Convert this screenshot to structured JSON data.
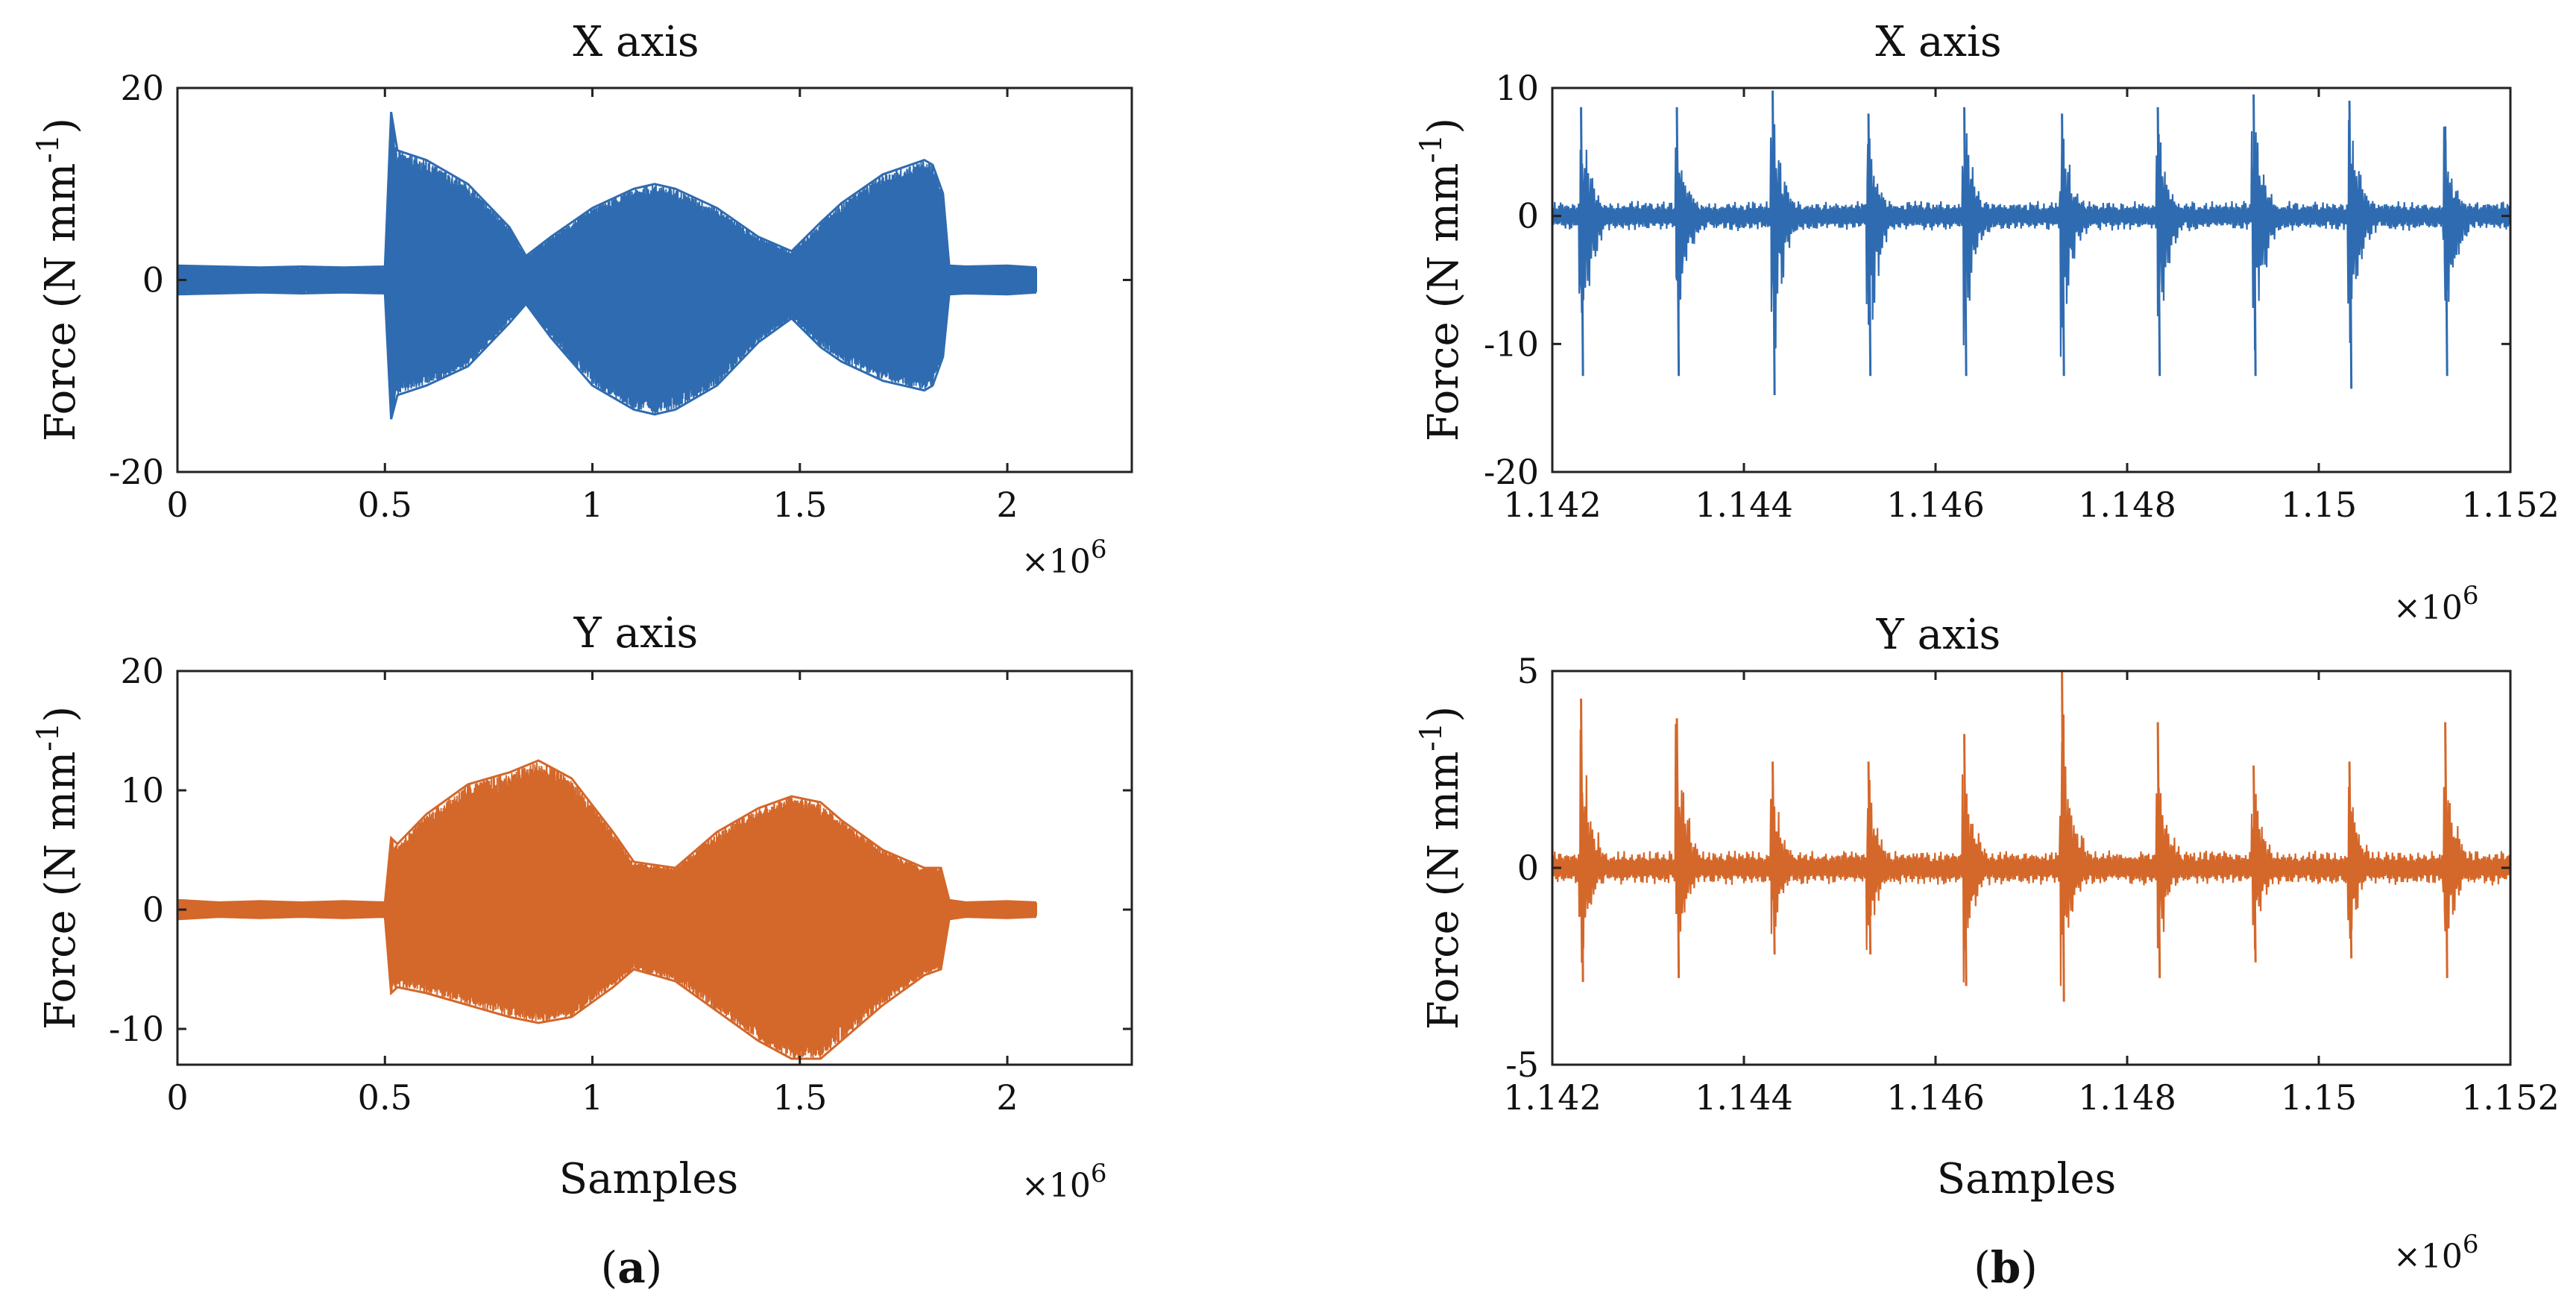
{
  "figure": {
    "panel_labels": [
      "a",
      "b"
    ],
    "colors": {
      "x_series": "#2f6bb0",
      "y_series": "#d4672a",
      "axes": "#222222",
      "text": "#111111"
    }
  },
  "chart_data": [
    {
      "id": "a-x",
      "type": "line",
      "title": "X axis",
      "xlabel": "",
      "ylabel_base": "Force (N mm",
      "ylabel_sup": "-1",
      "ylabel_close": ")",
      "x_multiplier": "×10",
      "x_multiplier_exp": "6",
      "xlim": [
        0,
        2.3
      ],
      "ylim": [
        -20,
        20
      ],
      "xticks": [
        0,
        0.5,
        1,
        1.5,
        2
      ],
      "xtick_labels": [
        "0",
        "0.5",
        "1",
        "1.5",
        "2"
      ],
      "yticks": [
        -20,
        0,
        20
      ],
      "ytick_labels": [
        "-20",
        "0",
        "20"
      ],
      "grid": false,
      "color": "#2f6bb0",
      "envelope": {
        "x": [
          0,
          0.1,
          0.2,
          0.3,
          0.4,
          0.5,
          0.515,
          0.53,
          0.6,
          0.7,
          0.8,
          0.84,
          0.9,
          1.0,
          1.1,
          1.15,
          1.2,
          1.3,
          1.4,
          1.48,
          1.55,
          1.6,
          1.7,
          1.8,
          1.82,
          1.845,
          1.86,
          1.9,
          2.0,
          2.07
        ],
        "upper": [
          1.5,
          1.4,
          1.3,
          1.4,
          1.3,
          1.4,
          17.5,
          13.5,
          12.5,
          10.0,
          5.5,
          2.5,
          4.5,
          7.5,
          9.5,
          10.0,
          9.5,
          7.5,
          4.5,
          3.0,
          6.0,
          8.0,
          11.0,
          12.5,
          12.0,
          9.0,
          1.5,
          1.4,
          1.5,
          1.3
        ],
        "lower": [
          -1.5,
          -1.4,
          -1.3,
          -1.4,
          -1.3,
          -1.4,
          -14.5,
          -12.0,
          -11.0,
          -9.0,
          -4.5,
          -2.5,
          -6.0,
          -11.0,
          -13.5,
          -14.0,
          -13.5,
          -11.0,
          -6.5,
          -4.0,
          -7.0,
          -8.5,
          -10.5,
          -11.5,
          -11.0,
          -8.0,
          -1.5,
          -1.4,
          -1.5,
          -1.3
        ]
      }
    },
    {
      "id": "a-y",
      "type": "line",
      "title": "Y axis",
      "xlabel": "Samples",
      "ylabel_base": "Force (N mm",
      "ylabel_sup": "-1",
      "ylabel_close": ")",
      "x_multiplier": "×10",
      "x_multiplier_exp": "6",
      "xlim": [
        0,
        2.3
      ],
      "ylim": [
        -13,
        20
      ],
      "xticks": [
        0,
        0.5,
        1,
        1.5,
        2
      ],
      "xtick_labels": [
        "0",
        "0.5",
        "1",
        "1.5",
        "2"
      ],
      "yticks": [
        -10,
        0,
        10,
        20
      ],
      "ytick_labels": [
        "-10",
        "0",
        "10",
        "20"
      ],
      "grid": false,
      "color": "#d4672a",
      "envelope": {
        "x": [
          0,
          0.1,
          0.2,
          0.3,
          0.4,
          0.5,
          0.515,
          0.53,
          0.6,
          0.7,
          0.8,
          0.87,
          0.95,
          1.05,
          1.1,
          1.2,
          1.3,
          1.4,
          1.48,
          1.55,
          1.6,
          1.7,
          1.8,
          1.84,
          1.86,
          1.9,
          2.0,
          2.07
        ],
        "upper": [
          0.8,
          0.6,
          0.7,
          0.6,
          0.7,
          0.6,
          6.0,
          5.5,
          8.0,
          10.5,
          11.5,
          12.5,
          11.0,
          6.5,
          4.0,
          3.5,
          6.5,
          8.5,
          9.5,
          9.0,
          7.5,
          5.0,
          3.5,
          3.5,
          0.8,
          0.6,
          0.7,
          0.6
        ],
        "lower": [
          -0.8,
          -0.6,
          -0.7,
          -0.6,
          -0.7,
          -0.6,
          -7.0,
          -6.5,
          -7.0,
          -8.0,
          -9.0,
          -9.5,
          -9.0,
          -6.5,
          -5.0,
          -6.0,
          -8.5,
          -11.0,
          -12.5,
          -12.5,
          -11.0,
          -8.0,
          -5.5,
          -5.0,
          -0.8,
          -0.6,
          -0.7,
          -0.6
        ]
      }
    },
    {
      "id": "b-x",
      "type": "line",
      "title": "X axis",
      "xlabel": "",
      "ylabel_base": "Force (N mm",
      "ylabel_sup": "-1",
      "ylabel_close": ")",
      "x_multiplier": "×10",
      "x_multiplier_exp": "6",
      "xlim": [
        1.142,
        1.152
      ],
      "ylim": [
        -20,
        10
      ],
      "xticks": [
        1.142,
        1.144,
        1.146,
        1.148,
        1.15,
        1.152
      ],
      "xtick_labels": [
        "1.142",
        "1.144",
        "1.146",
        "1.148",
        "1.15",
        "1.152"
      ],
      "yticks": [
        -20,
        -10,
        0,
        10
      ],
      "ytick_labels": [
        "-20",
        "-10",
        "0",
        "10"
      ],
      "grid": false,
      "color": "#2f6bb0",
      "bursts": {
        "x": [
          1.1423,
          1.1433,
          1.1443,
          1.1453,
          1.1463,
          1.14732,
          1.14832,
          1.14932,
          1.15032,
          1.15132
        ],
        "peak_max": [
          8.5,
          8.5,
          9.8,
          8.0,
          8.5,
          8.0,
          8.5,
          9.5,
          9.0,
          7.0
        ],
        "peak_min": [
          -12.5,
          -12.5,
          -14.0,
          -12.5,
          -12.5,
          -12.5,
          -12.5,
          -12.5,
          -13.5,
          -12.5
        ],
        "baseline_amplitude": 1.2
      }
    },
    {
      "id": "b-y",
      "type": "line",
      "title": "Y axis",
      "xlabel": "Samples",
      "ylabel_base": "Force (N mm",
      "ylabel_sup": "-1",
      "ylabel_close": ")",
      "x_multiplier": "×10",
      "x_multiplier_exp": "6",
      "xlim": [
        1.142,
        1.152
      ],
      "ylim": [
        -5,
        5
      ],
      "xticks": [
        1.142,
        1.144,
        1.146,
        1.148,
        1.15,
        1.152
      ],
      "xtick_labels": [
        "1.142",
        "1.144",
        "1.146",
        "1.148",
        "1.15",
        "1.152"
      ],
      "yticks": [
        -5,
        0,
        5
      ],
      "ytick_labels": [
        "-5",
        "0",
        "5"
      ],
      "grid": false,
      "color": "#d4672a",
      "bursts": {
        "x": [
          1.1423,
          1.1433,
          1.1443,
          1.1453,
          1.1463,
          1.14732,
          1.14832,
          1.14932,
          1.15032,
          1.15132
        ],
        "peak_max": [
          4.3,
          3.8,
          2.7,
          2.7,
          3.4,
          5.0,
          3.7,
          2.6,
          2.7,
          3.7
        ],
        "peak_min": [
          -2.9,
          -2.8,
          -2.2,
          -2.2,
          -3.0,
          -3.4,
          -2.8,
          -2.4,
          -2.3,
          -2.8
        ],
        "baseline_amplitude": 0.45
      }
    }
  ]
}
